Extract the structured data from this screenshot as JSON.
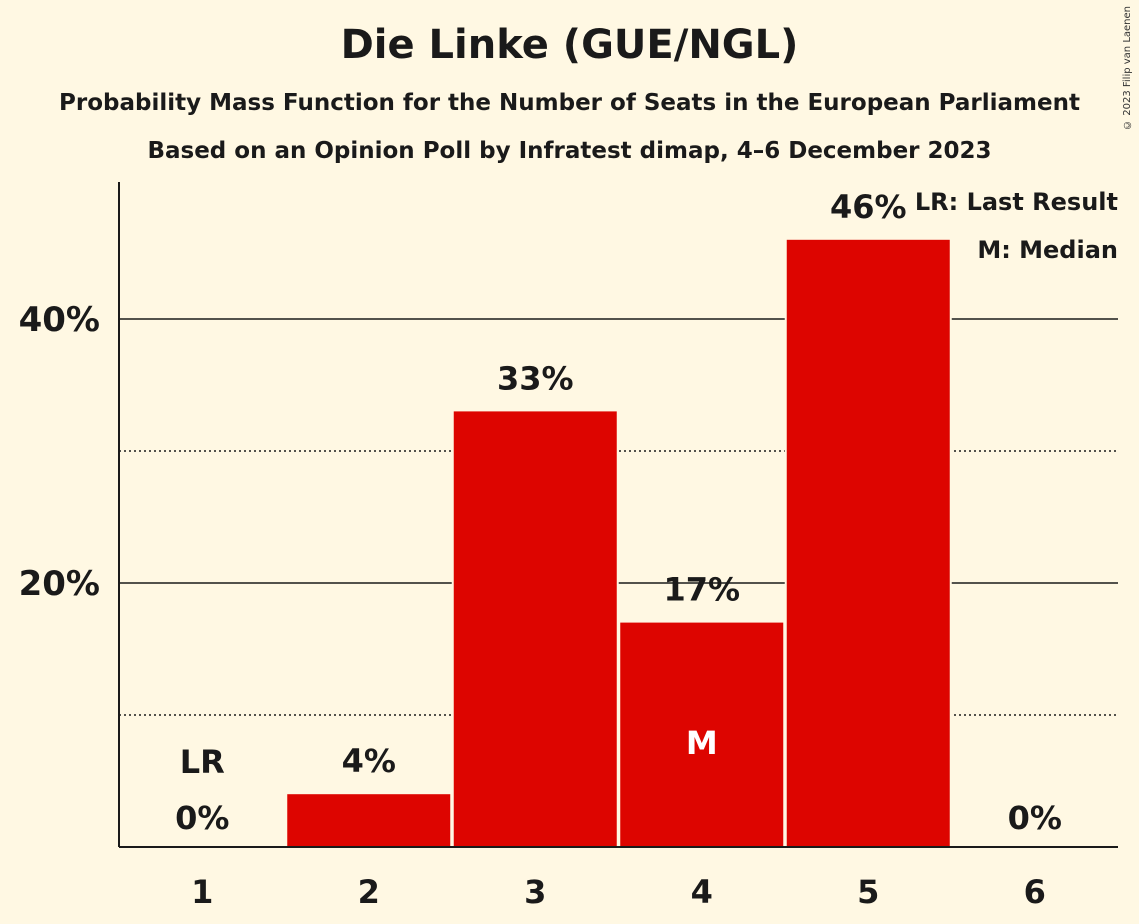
{
  "title": "Die Linke (GUE/NGL)",
  "subtitle1": "Probability Mass Function for the Number of Seats in the European Parliament",
  "subtitle2": "Based on an Opinion Poll by Infratest dimap, 4–6 December 2023",
  "copyright": "© 2023 Filip van Laenen",
  "legend": {
    "last_result": "LR: Last Result",
    "median": "M: Median"
  },
  "colors": {
    "bar": "#dd0500",
    "background": "#fff8e3",
    "text": "#1a1a1a"
  },
  "chart_data": {
    "type": "bar",
    "categories": [
      "1",
      "2",
      "3",
      "4",
      "5",
      "6"
    ],
    "values": [
      0,
      4,
      33,
      17,
      46,
      0
    ],
    "value_labels": [
      "0%",
      "4%",
      "33%",
      "17%",
      "46%",
      "0%"
    ],
    "yticks": [
      {
        "value": 20,
        "label": "20%"
      },
      {
        "value": 40,
        "label": "40%"
      }
    ],
    "minor_gridlines": [
      10,
      30
    ],
    "ylim": [
      0,
      50
    ],
    "grid": true,
    "legend_position": "top-right",
    "markers": [
      {
        "category": "1",
        "label": "LR",
        "meaning": "Last Result"
      },
      {
        "category": "4",
        "label": "M",
        "meaning": "Median"
      }
    ]
  }
}
